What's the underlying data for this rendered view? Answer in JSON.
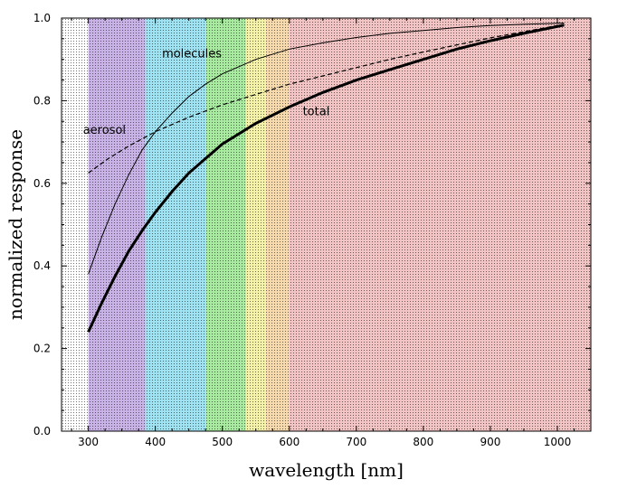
{
  "chart_data": {
    "type": "line",
    "title": "",
    "xlabel": "wavelength [nm]",
    "ylabel": "normalized response",
    "xlim": [
      260,
      1050
    ],
    "ylim": [
      0.0,
      1.0
    ],
    "x_ticks": [
      300,
      400,
      500,
      600,
      700,
      800,
      900,
      1000
    ],
    "y_ticks": [
      0.0,
      0.2,
      0.4,
      0.6,
      0.8,
      1.0
    ],
    "x_tick_labels": [
      "300",
      "400",
      "500",
      "600",
      "700",
      "800",
      "900",
      "1000"
    ],
    "y_tick_labels": [
      "0.0",
      "0.2",
      "0.4",
      "0.6",
      "0.8",
      "1.0"
    ],
    "grid": false,
    "spectrum_bands": [
      {
        "from": 300,
        "to": 385,
        "color": "#c9b3e6"
      },
      {
        "from": 385,
        "to": 475,
        "color": "#9fe3f2"
      },
      {
        "from": 475,
        "to": 535,
        "color": "#a8eaa0"
      },
      {
        "from": 535,
        "to": 565,
        "color": "#f4f2a8"
      },
      {
        "from": 565,
        "to": 600,
        "color": "#f6d9ad"
      },
      {
        "from": 600,
        "to": 1050,
        "color": "#f2c4c4"
      }
    ],
    "series": [
      {
        "name": "molecules",
        "style": "thin-solid",
        "x": [
          300,
          320,
          340,
          360,
          380,
          400,
          425,
          450,
          475,
          500,
          550,
          600,
          650,
          700,
          750,
          800,
          850,
          900,
          950,
          1010
        ],
        "y": [
          0.38,
          0.47,
          0.55,
          0.62,
          0.68,
          0.725,
          0.77,
          0.81,
          0.84,
          0.865,
          0.9,
          0.925,
          0.94,
          0.953,
          0.963,
          0.97,
          0.977,
          0.982,
          0.985,
          0.988
        ]
      },
      {
        "name": "aerosol",
        "style": "dashed",
        "x": [
          300,
          330,
          360,
          400,
          450,
          500,
          550,
          600,
          650,
          700,
          750,
          800,
          850,
          900,
          950,
          1010
        ],
        "y": [
          0.625,
          0.66,
          0.69,
          0.725,
          0.76,
          0.79,
          0.815,
          0.84,
          0.86,
          0.88,
          0.9,
          0.918,
          0.935,
          0.952,
          0.967,
          0.985
        ]
      },
      {
        "name": "total",
        "style": "thick-solid",
        "x": [
          300,
          320,
          340,
          360,
          380,
          400,
          425,
          450,
          475,
          500,
          550,
          600,
          650,
          700,
          750,
          800,
          850,
          900,
          950,
          1010
        ],
        "y": [
          0.24,
          0.31,
          0.375,
          0.435,
          0.485,
          0.53,
          0.58,
          0.625,
          0.66,
          0.695,
          0.745,
          0.785,
          0.82,
          0.85,
          0.875,
          0.9,
          0.925,
          0.945,
          0.963,
          0.983
        ]
      }
    ],
    "annotations": [
      {
        "text": "molecules",
        "x": 410,
        "y": 0.905
      },
      {
        "text": "aerosol",
        "x": 292,
        "y": 0.72
      },
      {
        "text": "total",
        "x": 620,
        "y": 0.765
      }
    ]
  }
}
